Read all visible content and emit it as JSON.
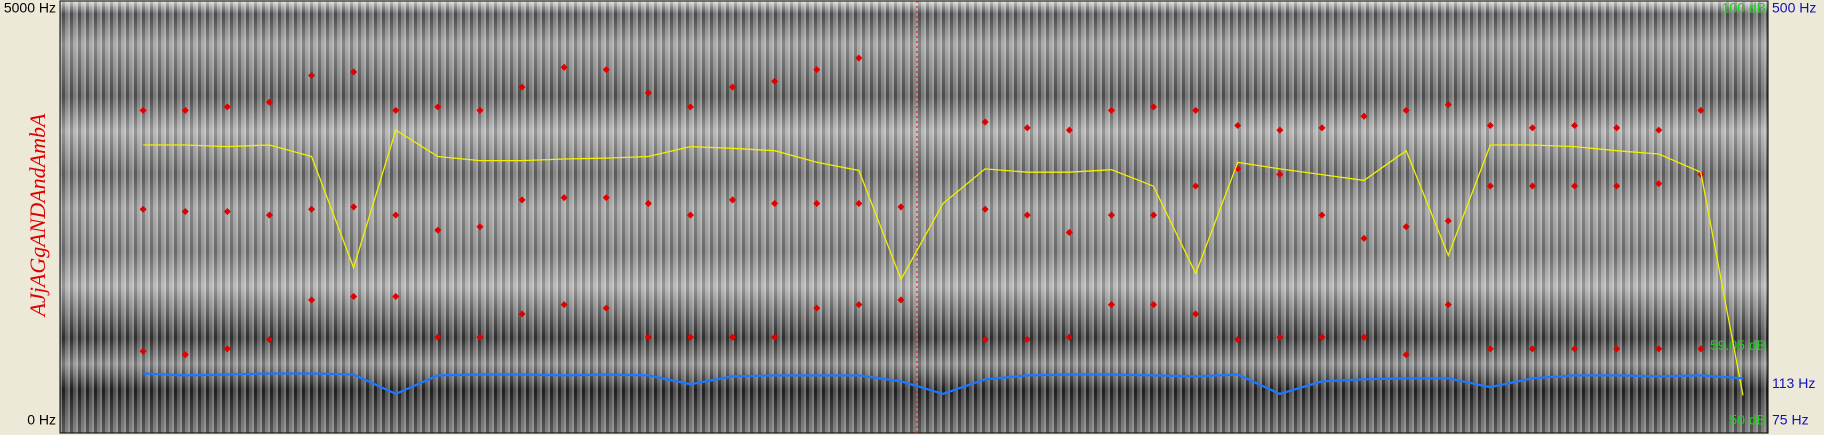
{
  "tier_label": "AJjAGgANDAndAmbA",
  "spectrogram": {
    "ylim": [
      0,
      5000
    ],
    "yticks": [
      {
        "value": 0,
        "label": "0 Hz"
      },
      {
        "value": 5000,
        "label": "5000 Hz"
      }
    ]
  },
  "formants": {
    "color": "#e00000",
    "tracks": [
      [
        null,
        847,
        805,
        876,
        989,
        1469,
        1511,
        1511,
        1017,
        1017,
        1299,
        1412,
        1370,
        1017,
        1017,
        1017,
        1017,
        1370,
        1412,
        1469,
        null,
        989,
        989,
        1017,
        1412,
        1412,
        1299,
        989,
        1017,
        1017,
        1017,
        805,
        1412,
        876,
        876,
        876,
        876,
        876,
        876,
        null
      ],
      [
        null,
        2570,
        2542,
        2542,
        2499,
        2570,
        2598,
        2499,
        2316,
        2358,
        2683,
        2711,
        2711,
        2640,
        2499,
        2683,
        2640,
        2640,
        2640,
        2598,
        null,
        2570,
        2499,
        2288,
        2499,
        2499,
        2852,
        3064,
        2993,
        2499,
        2217,
        2358,
        2429,
        2852,
        2852,
        2852,
        2852,
        2881,
        2993,
        null
      ],
      [
        null,
        3770,
        3770,
        3812,
        3869,
        4193,
        4236,
        3770,
        3812,
        3770,
        4052,
        4292,
        4264,
        3982,
        3812,
        4052,
        4123,
        4264,
        4405,
        null,
        null,
        3629,
        3558,
        3530,
        3770,
        3812,
        3770,
        3586,
        3530,
        3558,
        3699,
        3770,
        3840,
        3586,
        3558,
        3586,
        3558,
        3530,
        3770,
        null
      ]
    ]
  },
  "pitch": {
    "color": "#1e78ff",
    "ylim": [
      75,
      500
    ],
    "yticks": [
      {
        "value": 75,
        "label": "75 Hz"
      },
      {
        "value": 113,
        "label": "113 Hz"
      },
      {
        "value": 500,
        "label": "500 Hz"
      }
    ],
    "values": [
      null,
      124,
      122,
      123,
      124,
      124,
      123,
      103,
      122,
      123,
      123,
      122,
      123,
      122,
      113,
      121,
      122,
      122,
      122,
      116,
      103,
      118,
      122,
      123,
      123,
      122,
      121,
      123,
      103,
      116,
      118,
      119,
      119,
      110,
      119,
      122,
      122,
      121,
      122,
      119
    ]
  },
  "intensity": {
    "color": "#f0f000",
    "ylim": [
      50,
      100
    ],
    "yticks": [
      {
        "value": 50,
        "label": "50 dB"
      },
      {
        "value": 59.05,
        "label": "59.05 dB"
      },
      {
        "value": 100,
        "label": "100 dB"
      }
    ],
    "values": [
      null,
      83.5,
      83.5,
      83.3,
      83.5,
      82.1,
      68.6,
      85.3,
      82.1,
      81.6,
      81.6,
      81.8,
      81.9,
      82.1,
      83.3,
      83.1,
      82.8,
      81.4,
      80.4,
      67.2,
      76.4,
      80.6,
      80.2,
      80.2,
      80.5,
      78.5,
      67.9,
      81.4,
      80.6,
      79.9,
      79.2,
      82.8,
      70.1,
      83.5,
      83.5,
      83.3,
      82.8,
      82.4,
      80.2,
      53.1
    ]
  }
}
